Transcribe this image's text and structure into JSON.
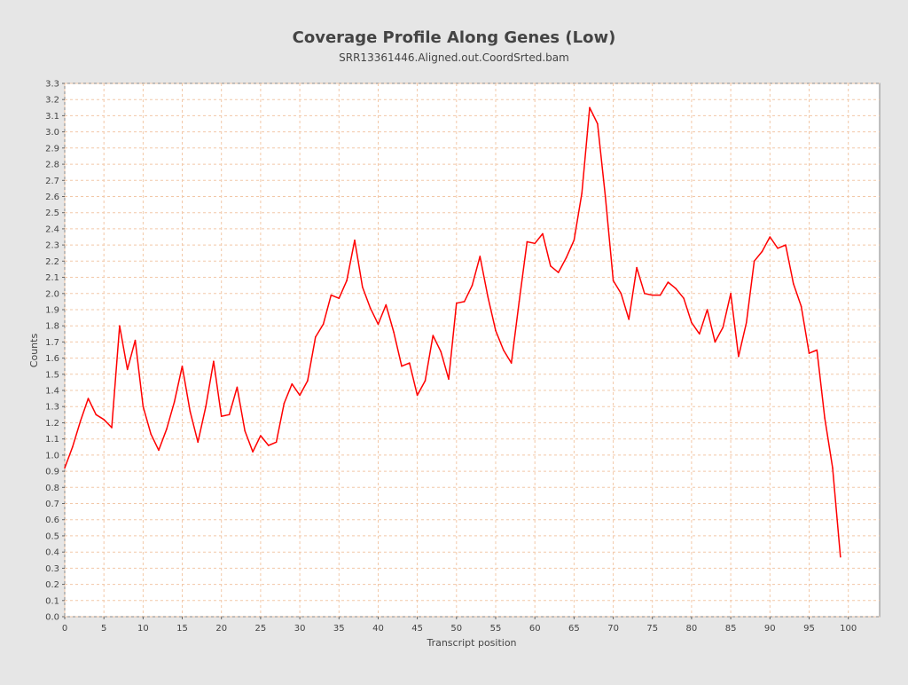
{
  "chart_data": {
    "type": "line",
    "title": "Coverage Profile Along Genes (Low)",
    "subtitle": "SRR13361446.Aligned.out.CoordSrted.bam",
    "xlabel": "Transcript position",
    "ylabel": "Counts",
    "xlim": [
      0,
      104
    ],
    "ylim": [
      0,
      3.3
    ],
    "xticks": [
      0,
      5,
      10,
      15,
      20,
      25,
      30,
      35,
      40,
      45,
      50,
      55,
      60,
      65,
      70,
      75,
      80,
      85,
      90,
      95,
      100
    ],
    "yticks": [
      0.0,
      0.1,
      0.2,
      0.3,
      0.4,
      0.5,
      0.6,
      0.7,
      0.8,
      0.9,
      1.0,
      1.1,
      1.2,
      1.3,
      1.4,
      1.5,
      1.6,
      1.7,
      1.8,
      1.9,
      2.0,
      2.1,
      2.2,
      2.3,
      2.4,
      2.5,
      2.6,
      2.7,
      2.8,
      2.9,
      3.0,
      3.1,
      3.2,
      3.3
    ],
    "grid": true,
    "series": [
      {
        "color": "#ff0000",
        "x": [
          0,
          1,
          2,
          3,
          4,
          5,
          6,
          7,
          8,
          9,
          10,
          11,
          12,
          13,
          14,
          15,
          16,
          17,
          18,
          19,
          20,
          21,
          22,
          23,
          24,
          25,
          26,
          27,
          28,
          29,
          30,
          31,
          32,
          33,
          34,
          35,
          36,
          37,
          38,
          39,
          40,
          41,
          42,
          43,
          44,
          45,
          46,
          47,
          48,
          49,
          50,
          51,
          52,
          53,
          54,
          55,
          56,
          57,
          58,
          59,
          60,
          61,
          62,
          63,
          64,
          65,
          66,
          67,
          68,
          69,
          70,
          71,
          72,
          73,
          74,
          75,
          76,
          77,
          78,
          79,
          80,
          81,
          82,
          83,
          84,
          85,
          86,
          87,
          88,
          89,
          90,
          91,
          92,
          93,
          94,
          95,
          96,
          97,
          98,
          99
        ],
        "values": [
          0.92,
          1.05,
          1.21,
          1.35,
          1.25,
          1.22,
          1.17,
          1.8,
          1.53,
          1.71,
          1.3,
          1.13,
          1.03,
          1.16,
          1.33,
          1.55,
          1.27,
          1.08,
          1.3,
          1.58,
          1.24,
          1.25,
          1.42,
          1.15,
          1.02,
          1.12,
          1.06,
          1.08,
          1.32,
          1.44,
          1.37,
          1.46,
          1.73,
          1.81,
          1.99,
          1.97,
          2.08,
          2.33,
          2.04,
          1.91,
          1.81,
          1.93,
          1.76,
          1.55,
          1.57,
          1.37,
          1.46,
          1.74,
          1.64,
          1.47,
          1.94,
          1.95,
          2.05,
          2.23,
          1.98,
          1.77,
          1.65,
          1.57,
          1.95,
          2.32,
          2.31,
          2.37,
          2.17,
          2.13,
          2.22,
          2.33,
          2.62,
          3.15,
          3.05,
          2.6,
          2.08,
          2.0,
          1.84,
          2.16,
          2.0,
          1.99,
          1.99,
          2.07,
          2.03,
          1.97,
          1.82,
          1.75,
          1.9,
          1.7,
          1.79,
          2.0,
          1.61,
          1.82,
          2.2,
          2.26,
          2.35,
          2.28,
          2.3,
          2.06,
          1.92,
          1.63,
          1.65,
          1.23,
          0.92,
          0.37
        ]
      }
    ]
  }
}
